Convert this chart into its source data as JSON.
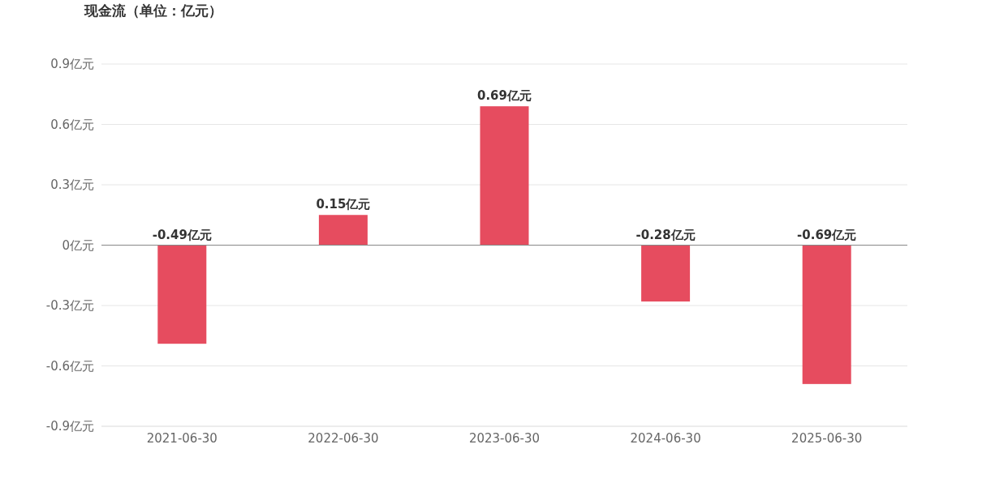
{
  "chart_data": {
    "type": "bar",
    "title": "现金流（单位：亿元）",
    "categories": [
      "2021-06-30",
      "2022-06-30",
      "2023-06-30",
      "2024-06-30",
      "2025-06-30"
    ],
    "values": [
      -0.49,
      0.15,
      0.69,
      -0.28,
      -0.69
    ],
    "value_labels": [
      "-0.49亿元",
      "0.15亿元",
      "0.69亿元",
      "-0.28亿元",
      "-0.69亿元"
    ],
    "color": "#e64c5f",
    "ylim": [
      -0.9,
      0.9
    ],
    "yticks": [
      {
        "value": -0.9,
        "label": "-0.9亿元"
      },
      {
        "value": -0.6,
        "label": "-0.6亿元"
      },
      {
        "value": -0.3,
        "label": "-0.3亿元"
      },
      {
        "value": 0,
        "label": "0亿元"
      },
      {
        "value": 0.3,
        "label": "0.3亿元"
      },
      {
        "value": 0.6,
        "label": "0.6亿元"
      },
      {
        "value": 0.9,
        "label": "0.9亿元"
      }
    ],
    "grid": "y"
  }
}
